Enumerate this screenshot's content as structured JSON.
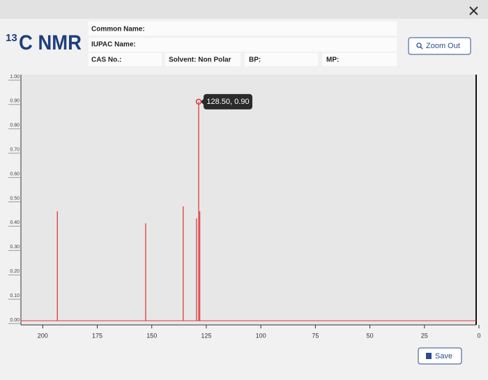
{
  "header": {
    "title_sup": "13",
    "title": "C NMR",
    "fields": [
      "Common Name:",
      "IUPAC Name:",
      "CAS No.:",
      "Solvent: Non Polar",
      "BP:",
      "MP:"
    ],
    "buttons": {
      "zoom_out": "Zoom Out",
      "save": "Save"
    }
  },
  "chart_data": {
    "type": "stick",
    "x": [
      193.3,
      152.8,
      135.6,
      129.5,
      128.5,
      128.0
    ],
    "values": [
      0.45,
      0.4,
      0.47,
      0.42,
      0.9,
      0.45
    ],
    "color": "#e0393a",
    "xlim": [
      210,
      0
    ],
    "xticks": [
      200,
      175,
      150,
      125,
      100,
      75,
      50,
      25,
      0
    ],
    "ylim": [
      0,
      1
    ],
    "yticks": [
      {
        "value": 0,
        "label": "0.00"
      },
      {
        "value": 0.1,
        "label": "0.10"
      },
      {
        "value": 0.2,
        "label": "0.20"
      },
      {
        "value": 0.3,
        "label": "0.30"
      },
      {
        "value": 0.4,
        "label": "0.40"
      },
      {
        "value": 0.5,
        "label": "0.50"
      },
      {
        "value": 0.6,
        "label": "0.60"
      },
      {
        "value": 0.7,
        "label": "0.70"
      },
      {
        "value": 0.8,
        "label": "0.80"
      },
      {
        "value": 0.9,
        "label": "0.90"
      },
      {
        "value": 1,
        "label": "1.00"
      }
    ],
    "annotation": {
      "text": "128.50, 0.90",
      "x": 128.5,
      "y": 0.9
    }
  }
}
